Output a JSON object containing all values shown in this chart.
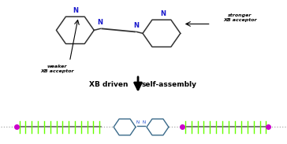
{
  "bg_color": "#ffffff",
  "arrow_text_left": "XB driven",
  "arrow_text_right": "self-assembly",
  "label_weaker": "weaker\nXB acceptor",
  "label_stronger": "stronger\nXB acceptor",
  "chain_color": "#555555",
  "green_color": "#66ff00",
  "purple_color": "#cc00cc",
  "nitrogen_color": "#1a1acc",
  "ring_color": "#333333",
  "ring_color_bottom": "#3a6a8a",
  "azo_n_color": "#1a1acc",
  "dotted_color": "#aaaaaa"
}
